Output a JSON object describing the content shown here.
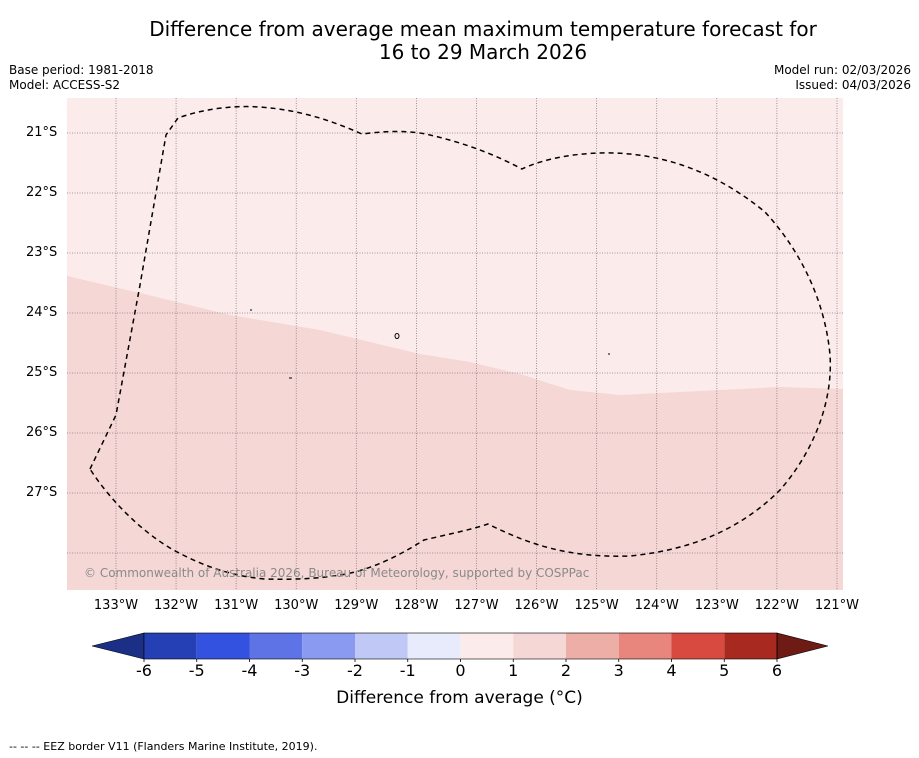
{
  "title_line1": "Difference from average mean maximum temperature forecast for",
  "title_line2": "16 to 29 March 2026",
  "base_period": "Base period: 1981-2018",
  "model": "Model: ACCESS-S2",
  "model_run": "Model run: 02/03/2026",
  "issued": "Issued: 04/03/2026",
  "lat_labels": [
    "21°S",
    "22°S",
    "23°S",
    "24°S",
    "25°S",
    "26°S",
    "27°S"
  ],
  "lon_labels": [
    "133°W",
    "132°W",
    "131°W",
    "130°W",
    "129°W",
    "128°W",
    "127°W",
    "126°W",
    "125°W",
    "124°W",
    "123°W",
    "122°W",
    "121°W"
  ],
  "copyright": "© Commonwealth of Australia 2026, Bureau of Meteorology, supported by COSPPac",
  "colorbar": {
    "ticks": [
      "-6",
      "-5",
      "-4",
      "-3",
      "-2",
      "-1",
      "0",
      "1",
      "2",
      "3",
      "4",
      "5",
      "6"
    ],
    "label": "Difference from average (°C)",
    "colors": [
      "#1c2f87",
      "#2540b5",
      "#3352e0",
      "#5d73e6",
      "#8a9af0",
      "#c0c8f5",
      "#e8ebfb",
      "#fbeceb",
      "#f5d7d5",
      "#eeaea8",
      "#e8857d",
      "#d84a3f",
      "#a82920",
      "#6e1a15"
    ]
  },
  "map": {
    "land_color_1_to_2": "#f5d7d5",
    "land_color_0_to_1": "#fbeceb",
    "eez_line_color": "#000000"
  },
  "legend_note": "-- -- -- EEZ border V11 (Flanders Marine Institute, 2019)."
}
